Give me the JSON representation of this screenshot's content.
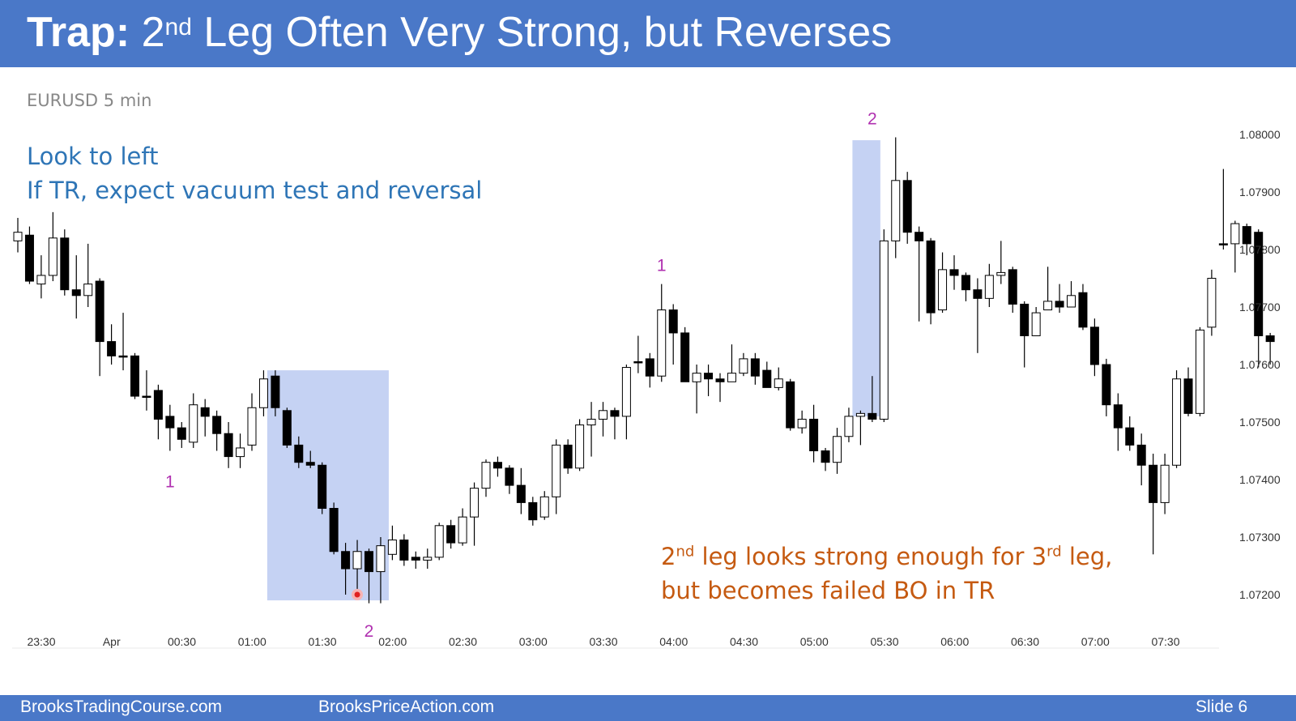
{
  "header": {
    "title_bold": "Trap:",
    "title_num": "2",
    "title_sup": "nd",
    "title_rest": " Leg Often Very Strong, but Reverses"
  },
  "footer": {
    "left": "BrooksTradingCourse.com",
    "middle": "BrooksPriceAction.com",
    "right": "Slide  6"
  },
  "annotations": {
    "line1": "Look to left",
    "line2": "If TR, expect vacuum test and reversal",
    "orange1_a": "2",
    "orange1_sup1": "nd",
    "orange1_b": " leg looks strong enough for 3",
    "orange1_sup2": "rd",
    "orange1_c": " leg,",
    "orange2": "but becomes failed BO in TR"
  },
  "colors": {
    "header": "#4a78c8",
    "highlight": "#c5d2f3",
    "label": "#b030b0",
    "blue_text": "#2e75b6",
    "orange_text": "#c55a11"
  },
  "chart_data": {
    "type": "candlestick",
    "title": "EURUSD 5 min",
    "y_ticks": [
      1.072,
      1.073,
      1.074,
      1.075,
      1.076,
      1.077,
      1.078,
      1.079,
      1.08
    ],
    "y_tick_labels": [
      "1.07200",
      "1.07300",
      "1.07400",
      "1.07500",
      "1.07600",
      "1.07700",
      "1.07800",
      "1.07900",
      "1.08000"
    ],
    "x_tick_labels": [
      "23:30",
      "Apr",
      "00:30",
      "01:00",
      "01:30",
      "02:00",
      "02:30",
      "03:00",
      "03:30",
      "04:00",
      "04:30",
      "05:00",
      "05:30",
      "06:00",
      "06:30",
      "07:00",
      "07:30"
    ],
    "candles": [
      [
        1.07815,
        1.0783,
        1.07855,
        1.07795
      ],
      [
        1.07825,
        1.07745,
        1.0784,
        1.0774
      ],
      [
        1.0774,
        1.07755,
        1.0779,
        1.07715
      ],
      [
        1.07755,
        1.0782,
        1.07865,
        1.07745
      ],
      [
        1.0782,
        1.0773,
        1.07835,
        1.0772
      ],
      [
        1.0773,
        1.0772,
        1.0779,
        1.0768
      ],
      [
        1.0772,
        1.0774,
        1.0781,
        1.077
      ],
      [
        1.07745,
        1.0764,
        1.0775,
        1.0758
      ],
      [
        1.0764,
        1.07615,
        1.0767,
        1.076
      ],
      [
        1.07615,
        1.07615,
        1.0769,
        1.0759
      ],
      [
        1.07615,
        1.07545,
        1.0762,
        1.0754
      ],
      [
        1.07545,
        1.07545,
        1.0759,
        1.0752
      ],
      [
        1.07555,
        1.07505,
        1.07565,
        1.0747
      ],
      [
        1.0751,
        1.0749,
        1.0753,
        1.0745
      ],
      [
        1.0749,
        1.0747,
        1.075,
        1.07455
      ],
      [
        1.07465,
        1.0753,
        1.0755,
        1.07455
      ],
      [
        1.07525,
        1.0751,
        1.0754,
        1.07475
      ],
      [
        1.0751,
        1.0748,
        1.0752,
        1.0745
      ],
      [
        1.0748,
        1.0744,
        1.075,
        1.0742
      ],
      [
        1.0744,
        1.07455,
        1.0748,
        1.0742
      ],
      [
        1.0746,
        1.07525,
        1.0755,
        1.0745
      ],
      [
        1.07525,
        1.07575,
        1.0759,
        1.0751
      ],
      [
        1.0758,
        1.07525,
        1.0759,
        1.0751
      ],
      [
        1.0752,
        1.0746,
        1.07525,
        1.07455
      ],
      [
        1.0746,
        1.0743,
        1.07475,
        1.0742
      ],
      [
        1.0743,
        1.07425,
        1.0745,
        1.0742
      ],
      [
        1.07425,
        1.0735,
        1.0743,
        1.0734
      ],
      [
        1.0735,
        1.07275,
        1.0736,
        1.0727
      ],
      [
        1.07275,
        1.07245,
        1.0729,
        1.072
      ],
      [
        1.07245,
        1.07275,
        1.07295,
        1.0721
      ],
      [
        1.07275,
        1.0724,
        1.0728,
        1.07185
      ],
      [
        1.0724,
        1.07285,
        1.073,
        1.07185
      ],
      [
        1.0727,
        1.07295,
        1.0732,
        1.0726
      ],
      [
        1.07295,
        1.0726,
        1.07305,
        1.0725
      ],
      [
        1.07265,
        1.0726,
        1.07275,
        1.07245
      ],
      [
        1.0726,
        1.07265,
        1.0728,
        1.07245
      ],
      [
        1.07265,
        1.0732,
        1.07325,
        1.0726
      ],
      [
        1.0732,
        1.0729,
        1.0733,
        1.0728
      ],
      [
        1.0729,
        1.07335,
        1.0735,
        1.07285
      ],
      [
        1.07335,
        1.07385,
        1.07395,
        1.07285
      ],
      [
        1.07385,
        1.0743,
        1.07435,
        1.0737
      ],
      [
        1.0743,
        1.0742,
        1.0744,
        1.07405
      ],
      [
        1.0742,
        1.0739,
        1.07425,
        1.07375
      ],
      [
        1.0739,
        1.0736,
        1.0742,
        1.0734
      ],
      [
        1.0736,
        1.0733,
        1.0737,
        1.0732
      ],
      [
        1.07335,
        1.0737,
        1.0738,
        1.0733
      ],
      [
        1.0737,
        1.0746,
        1.0747,
        1.0734
      ],
      [
        1.0746,
        1.0742,
        1.0747,
        1.0741
      ],
      [
        1.0742,
        1.07495,
        1.07505,
        1.07415
      ],
      [
        1.07495,
        1.07505,
        1.07535,
        1.0744
      ],
      [
        1.07505,
        1.0752,
        1.07535,
        1.07475
      ],
      [
        1.0752,
        1.0751,
        1.07525,
        1.0747
      ],
      [
        1.0751,
        1.07595,
        1.076,
        1.0747
      ],
      [
        1.07605,
        1.07605,
        1.0765,
        1.07585
      ],
      [
        1.0761,
        1.0758,
        1.0762,
        1.0756
      ],
      [
        1.0758,
        1.07695,
        1.0774,
        1.0757
      ],
      [
        1.07695,
        1.07655,
        1.07705,
        1.076
      ],
      [
        1.07655,
        1.0757,
        1.07665,
        1.0757
      ],
      [
        1.0757,
        1.07585,
        1.076,
        1.07515
      ],
      [
        1.07585,
        1.07575,
        1.076,
        1.07545
      ],
      [
        1.07575,
        1.0757,
        1.07585,
        1.07535
      ],
      [
        1.0757,
        1.07585,
        1.07635,
        1.0757
      ],
      [
        1.07585,
        1.0761,
        1.0762,
        1.0758
      ],
      [
        1.0761,
        1.0758,
        1.0762,
        1.07565
      ],
      [
        1.0759,
        1.0756,
        1.07605,
        1.0756
      ],
      [
        1.0756,
        1.07575,
        1.07595,
        1.07555
      ],
      [
        1.0757,
        1.0749,
        1.07575,
        1.07485
      ],
      [
        1.0749,
        1.07505,
        1.0752,
        1.0748
      ],
      [
        1.07505,
        1.0745,
        1.0753,
        1.0743
      ],
      [
        1.0745,
        1.0743,
        1.07455,
        1.07415
      ],
      [
        1.0743,
        1.07475,
        1.0749,
        1.0741
      ],
      [
        1.07475,
        1.0751,
        1.07525,
        1.07465
      ],
      [
        1.0751,
        1.07515,
        1.0752,
        1.0746
      ],
      [
        1.07515,
        1.07505,
        1.0758,
        1.075
      ],
      [
        1.07505,
        1.07815,
        1.07835,
        1.075
      ],
      [
        1.07815,
        1.0792,
        1.07995,
        1.07785
      ],
      [
        1.0792,
        1.0783,
        1.07935,
        1.0781
      ],
      [
        1.0783,
        1.07815,
        1.0784,
        1.07675
      ],
      [
        1.07815,
        1.0769,
        1.0782,
        1.0767
      ],
      [
        1.07695,
        1.07765,
        1.07795,
        1.0769
      ],
      [
        1.07765,
        1.07755,
        1.0779,
        1.0773
      ],
      [
        1.07755,
        1.0773,
        1.0776,
        1.0771
      ],
      [
        1.0773,
        1.07715,
        1.0775,
        1.0762
      ],
      [
        1.07715,
        1.07755,
        1.07775,
        1.077
      ],
      [
        1.07755,
        1.0776,
        1.07815,
        1.0774
      ],
      [
        1.07765,
        1.07705,
        1.0777,
        1.0769
      ],
      [
        1.07705,
        1.0765,
        1.0771,
        1.07595
      ],
      [
        1.0765,
        1.0769,
        1.077,
        1.0765
      ],
      [
        1.07695,
        1.0771,
        1.0777,
        1.07695
      ],
      [
        1.0771,
        1.077,
        1.0774,
        1.0769
      ],
      [
        1.077,
        1.0772,
        1.07745,
        1.077
      ],
      [
        1.07725,
        1.07665,
        1.0774,
        1.0766
      ],
      [
        1.07665,
        1.076,
        1.0768,
        1.0758
      ],
      [
        1.076,
        1.0753,
        1.0761,
        1.0751
      ],
      [
        1.0753,
        1.0749,
        1.0755,
        1.0745
      ],
      [
        1.0749,
        1.0746,
        1.0751,
        1.0745
      ],
      [
        1.0746,
        1.07425,
        1.0748,
        1.0739
      ],
      [
        1.07425,
        1.0736,
        1.07445,
        1.0727
      ],
      [
        1.0736,
        1.07425,
        1.07445,
        1.0734
      ],
      [
        1.07425,
        1.07575,
        1.0759,
        1.0742
      ],
      [
        1.07575,
        1.07515,
        1.07595,
        1.0751
      ],
      [
        1.07515,
        1.0766,
        1.07665,
        1.0751
      ],
      [
        1.07665,
        1.0775,
        1.07765,
        1.0765
      ],
      [
        1.0781,
        1.0781,
        1.0794,
        1.078
      ],
      [
        1.0781,
        1.07845,
        1.0785,
        1.0776
      ],
      [
        1.0784,
        1.0781,
        1.07845,
        1.0779
      ],
      [
        1.0783,
        1.0765,
        1.07835,
        1.07595
      ],
      [
        1.0765,
        1.0764,
        1.07655,
        1.076
      ]
    ],
    "highlight_zones": [
      {
        "from_index": 22,
        "to_index": 31,
        "top": 1.0759,
        "bottom": 1.0719
      },
      {
        "from_index": 72,
        "to_index": 73,
        "top": 1.0799,
        "bottom": 1.0751
      }
    ],
    "leg_labels": [
      {
        "text": "1",
        "index": 13,
        "price": 1.0744
      },
      {
        "text": "2",
        "index": 30,
        "price": 1.0718
      },
      {
        "text": "1",
        "index": 55,
        "price": 1.0774
      },
      {
        "text": "2",
        "index": 73,
        "price": 1.07995
      }
    ],
    "marker": {
      "index": 29,
      "price": 1.072
    }
  }
}
